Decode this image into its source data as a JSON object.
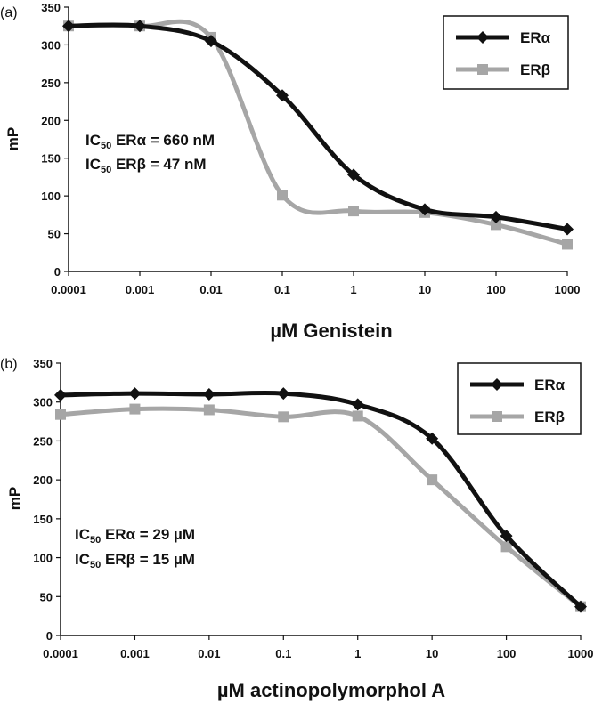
{
  "chart_data": [
    {
      "type": "line",
      "panel_label": "(a)",
      "title": "",
      "xlabel": "µM Genistein",
      "ylabel": "mP",
      "x_scale": "log",
      "categories": [
        "0.0001",
        "0.001",
        "0.01",
        "0.1",
        "1",
        "10",
        "100",
        "1000"
      ],
      "x": [
        0.0001,
        0.001,
        0.01,
        0.1,
        1,
        10,
        100,
        1000
      ],
      "ylim": [
        0,
        350
      ],
      "yticks": [
        0,
        50,
        100,
        150,
        200,
        250,
        300,
        350
      ],
      "grid": false,
      "legend_position": "top-right",
      "series": [
        {
          "name": "ERα",
          "marker": "diamond",
          "color": "#111111",
          "values": [
            325,
            325,
            305,
            233,
            128,
            82,
            72,
            56
          ]
        },
        {
          "name": "ERβ",
          "marker": "square",
          "color": "#a6a6a6",
          "values": [
            325,
            325,
            310,
            101,
            80,
            78,
            62,
            36
          ]
        }
      ],
      "annotations": [
        {
          "prefix": "IC",
          "sub": "50",
          "text": " ERα = 660 nM"
        },
        {
          "prefix": "IC",
          "sub": "50",
          "text": " ERβ = 47 nM"
        }
      ]
    },
    {
      "type": "line",
      "panel_label": "(b)",
      "title": "",
      "xlabel": "µM actinopolymorphol A",
      "ylabel": "mP",
      "x_scale": "log",
      "categories": [
        "0.0001",
        "0.001",
        "0.01",
        "0.1",
        "1",
        "10",
        "100",
        "1000"
      ],
      "x": [
        0.0001,
        0.001,
        0.01,
        0.1,
        1,
        10,
        100,
        1000
      ],
      "ylim": [
        0,
        350
      ],
      "yticks": [
        0,
        50,
        100,
        150,
        200,
        250,
        300,
        350
      ],
      "grid": false,
      "legend_position": "top-right",
      "series": [
        {
          "name": "ERα",
          "marker": "diamond",
          "color": "#111111",
          "values": [
            309,
            311,
            310,
            311,
            297,
            253,
            128,
            37
          ]
        },
        {
          "name": "ERβ",
          "marker": "square",
          "color": "#a6a6a6",
          "values": [
            284,
            291,
            290,
            281,
            282,
            200,
            114,
            37
          ]
        }
      ],
      "annotations": [
        {
          "prefix": "IC",
          "sub": "50",
          "text": " ERα = 29 µM"
        },
        {
          "prefix": "IC",
          "sub": "50",
          "text": " ERβ = 15 µM"
        }
      ]
    }
  ]
}
